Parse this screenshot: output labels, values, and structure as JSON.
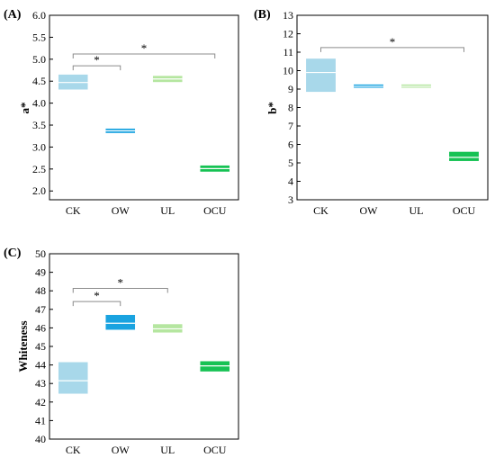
{
  "colors": {
    "CK": "#a8d8ea",
    "OW": "#1aa3e0",
    "UL": "#b5e6a0",
    "OCU": "#16c254",
    "bracket": "#8c8c8c"
  },
  "chart_data": [
    {
      "type": "box",
      "panel": "(A)",
      "ylabel": "a*",
      "categories": [
        "CK",
        "OW",
        "UL",
        "OCU"
      ],
      "ylim": [
        1.8,
        6.0
      ],
      "yticks": [
        "2.0",
        "2.5",
        "3.0",
        "3.5",
        "4.0",
        "4.5",
        "5.0",
        "5.5",
        "6.0"
      ],
      "boxes": [
        {
          "cat": "CK",
          "low": 4.31,
          "high": 4.65,
          "median": 4.47
        },
        {
          "cat": "OW",
          "low": 3.32,
          "high": 3.42,
          "median": 3.37
        },
        {
          "cat": "UL",
          "low": 4.48,
          "high": 4.62,
          "median": 4.55
        },
        {
          "cat": "OCU",
          "low": 2.44,
          "high": 2.58,
          "median": 2.51
        }
      ],
      "significance": [
        {
          "from": "CK",
          "to": "OW",
          "y": 4.85,
          "label": "*"
        },
        {
          "from": "CK",
          "to": "OCU",
          "y": 5.12,
          "label": "*"
        }
      ]
    },
    {
      "type": "box",
      "panel": "(B)",
      "ylabel": "b*",
      "categories": [
        "CK",
        "OW",
        "UL",
        "OCU"
      ],
      "ylim": [
        3,
        13
      ],
      "yticks": [
        "3",
        "4",
        "5",
        "6",
        "7",
        "8",
        "9",
        "10",
        "11",
        "12",
        "13"
      ],
      "boxes": [
        {
          "cat": "CK",
          "low": 8.85,
          "high": 10.65,
          "median": 9.9
        },
        {
          "cat": "OW",
          "low": 9.07,
          "high": 9.25,
          "median": 9.15
        },
        {
          "cat": "UL",
          "low": 9.07,
          "high": 9.25,
          "median": 9.15
        },
        {
          "cat": "OCU",
          "low": 5.1,
          "high": 5.6,
          "median": 5.3
        }
      ],
      "significance": [
        {
          "from": "CK",
          "to": "OCU",
          "y": 11.25,
          "label": "*"
        }
      ]
    },
    {
      "type": "box",
      "panel": "(C)",
      "ylabel": "Whiteness",
      "categories": [
        "CK",
        "OW",
        "UL",
        "OCU"
      ],
      "ylim": [
        40,
        50
      ],
      "yticks": [
        "40",
        "41",
        "42",
        "43",
        "44",
        "45",
        "46",
        "47",
        "48",
        "49",
        "50"
      ],
      "boxes": [
        {
          "cat": "CK",
          "low": 42.45,
          "high": 44.15,
          "median": 43.15
        },
        {
          "cat": "OW",
          "low": 45.9,
          "high": 46.7,
          "median": 46.25
        },
        {
          "cat": "UL",
          "low": 45.75,
          "high": 46.2,
          "median": 45.95
        },
        {
          "cat": "OCU",
          "low": 43.65,
          "high": 44.2,
          "median": 43.95
        }
      ],
      "significance": [
        {
          "from": "CK",
          "to": "OW",
          "y": 47.42,
          "label": "*"
        },
        {
          "from": "CK",
          "to": "UL",
          "y": 48.13,
          "label": "*"
        }
      ]
    }
  ]
}
